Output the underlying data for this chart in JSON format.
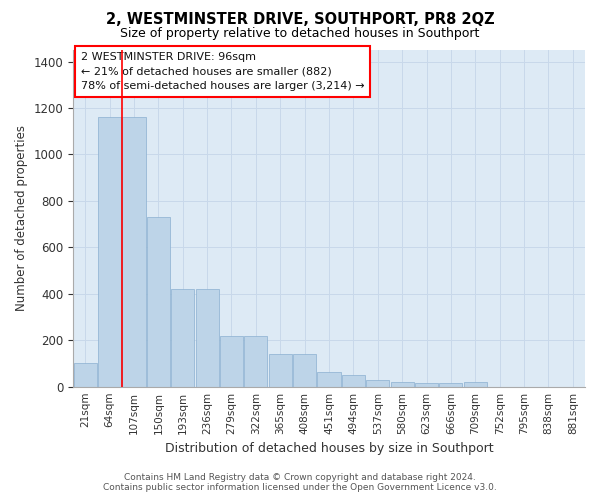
{
  "title": "2, WESTMINSTER DRIVE, SOUTHPORT, PR8 2QZ",
  "subtitle": "Size of property relative to detached houses in Southport",
  "xlabel": "Distribution of detached houses by size in Southport",
  "ylabel": "Number of detached properties",
  "categories": [
    "21sqm",
    "64sqm",
    "107sqm",
    "150sqm",
    "193sqm",
    "236sqm",
    "279sqm",
    "322sqm",
    "365sqm",
    "408sqm",
    "451sqm",
    "494sqm",
    "537sqm",
    "580sqm",
    "623sqm",
    "666sqm",
    "709sqm",
    "752sqm",
    "795sqm",
    "838sqm",
    "881sqm"
  ],
  "values": [
    100,
    1160,
    1160,
    730,
    420,
    420,
    220,
    220,
    140,
    140,
    65,
    50,
    30,
    20,
    15,
    15,
    20,
    0,
    0,
    0,
    0
  ],
  "bar_color": "#bdd4e8",
  "bar_edge_color": "#8ab0d0",
  "grid_color": "#c8d8ea",
  "background_color": "#ddeaf5",
  "annotation_box_text": "2 WESTMINSTER DRIVE: 96sqm\n← 21% of detached houses are smaller (882)\n78% of semi-detached houses are larger (3,214) →",
  "property_line_x": 1.5,
  "ylim": [
    0,
    1450
  ],
  "yticks": [
    0,
    200,
    400,
    600,
    800,
    1000,
    1200,
    1400
  ],
  "footer_line1": "Contains HM Land Registry data © Crown copyright and database right 2024.",
  "footer_line2": "Contains public sector information licensed under the Open Government Licence v3.0."
}
